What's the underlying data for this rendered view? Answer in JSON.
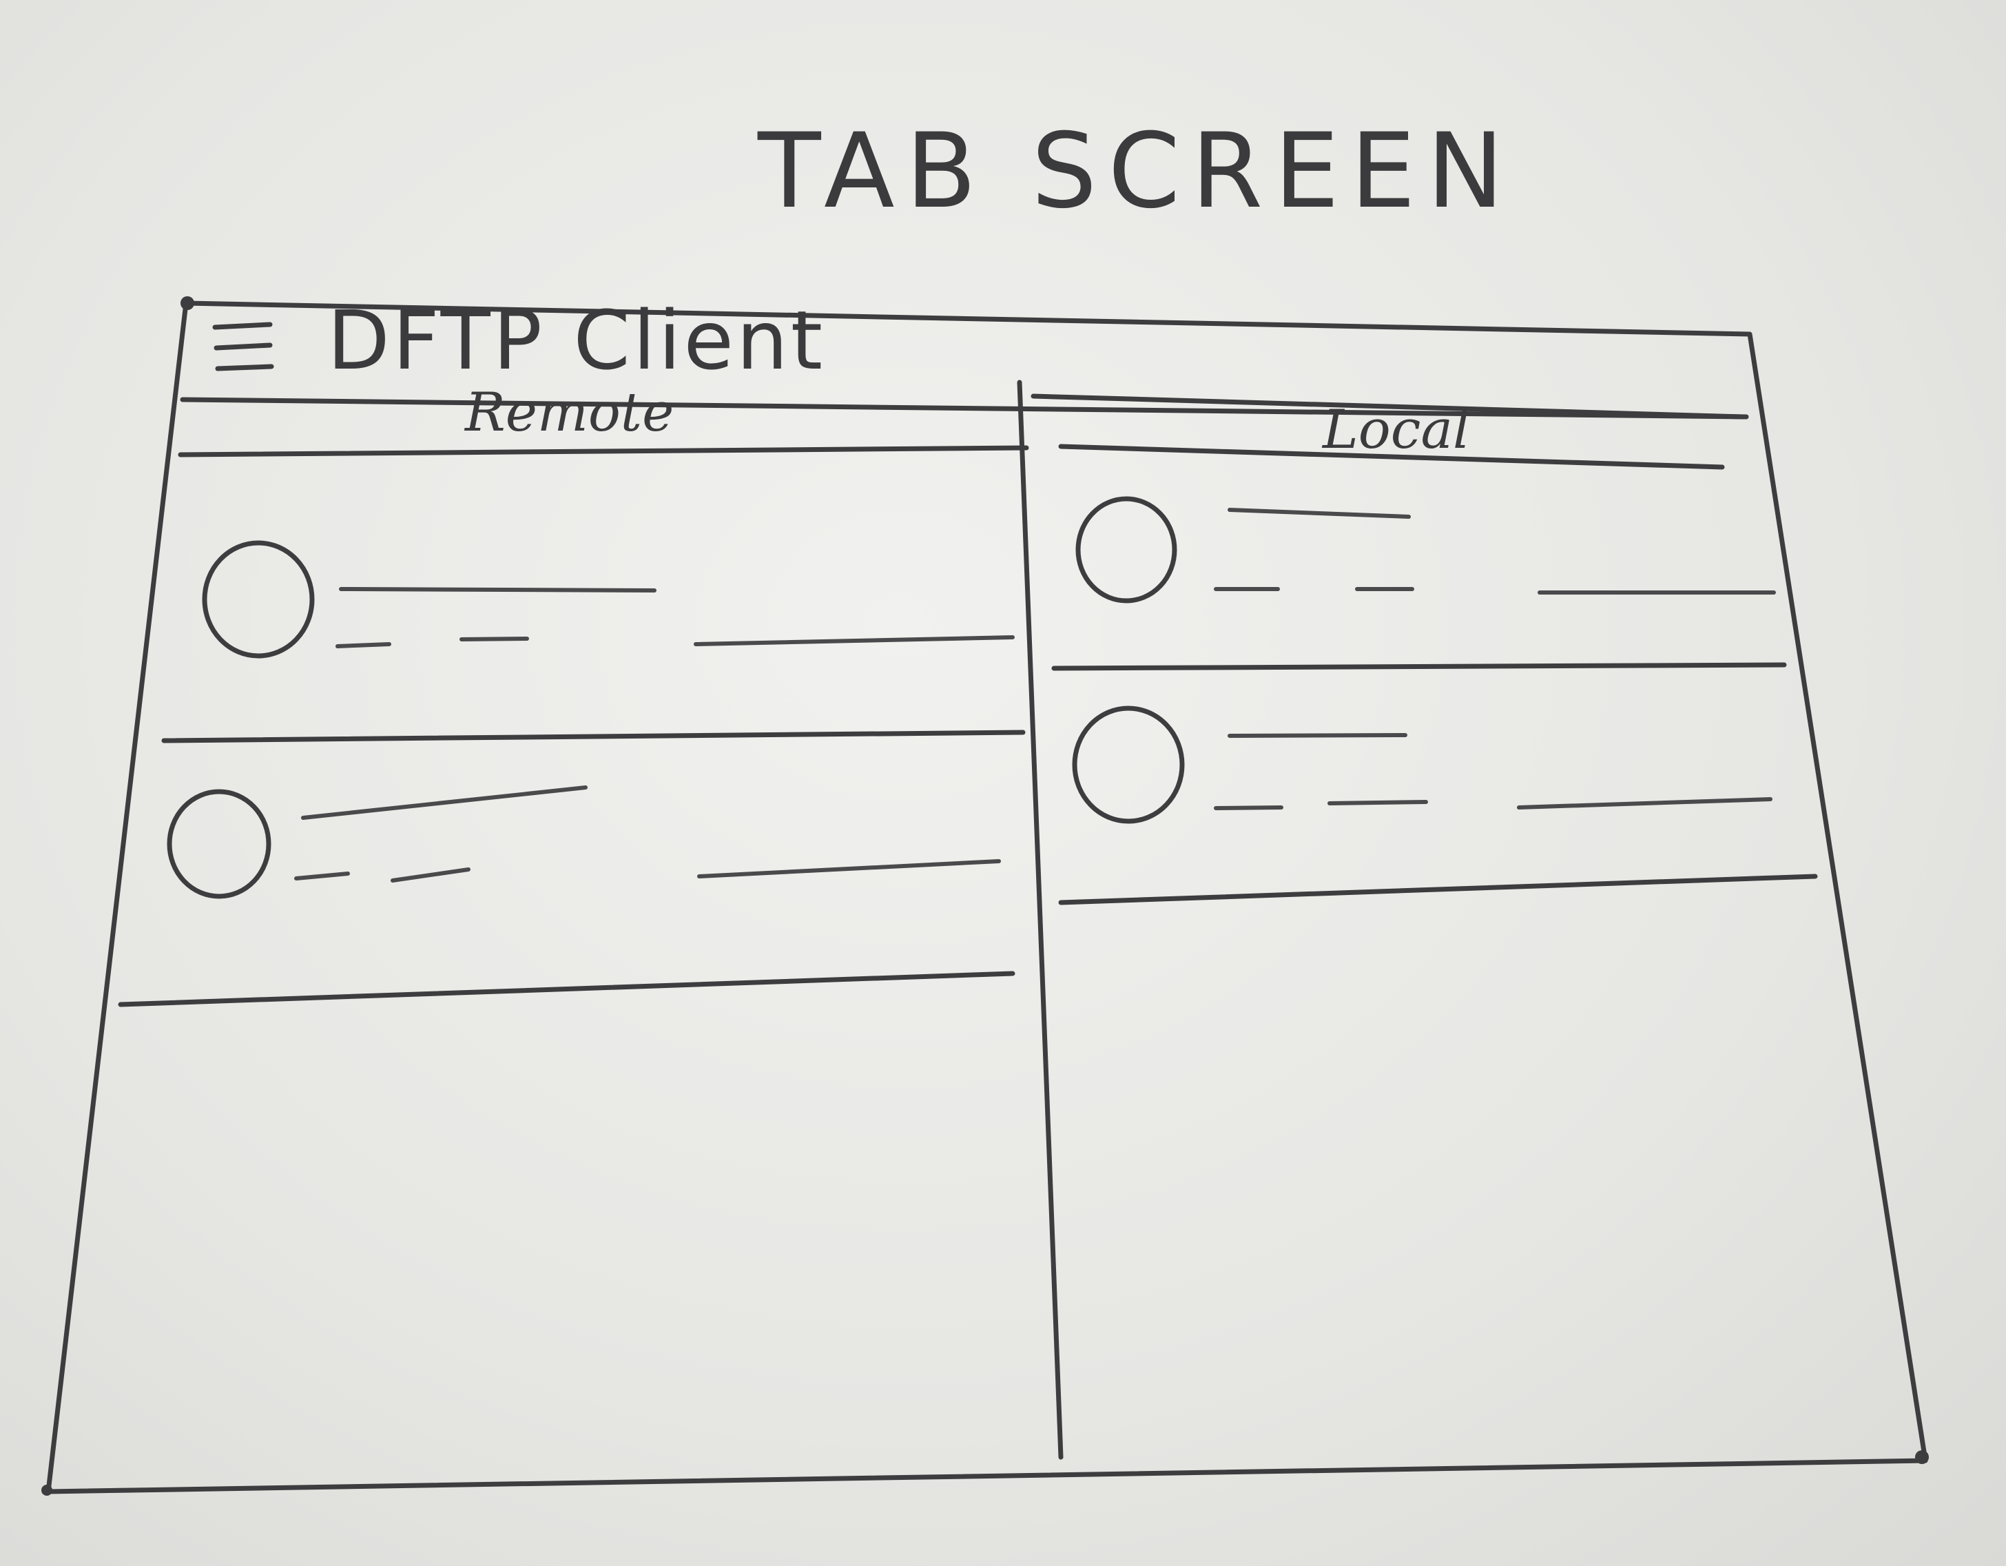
{
  "page": {
    "heading": "TAB SCREEN"
  },
  "app_bar": {
    "menu_icon": "hamburger-menu-icon",
    "title": "DFTP Client"
  },
  "columns": {
    "remote": {
      "label": "Remote",
      "items": [
        {
          "icon": "circle-placeholder-icon"
        },
        {
          "icon": "circle-placeholder-icon"
        }
      ]
    },
    "local": {
      "label": "Local",
      "items": [
        {
          "icon": "circle-placeholder-icon"
        },
        {
          "icon": "circle-placeholder-icon"
        }
      ]
    }
  },
  "colors": {
    "ink": "#3d3d3f",
    "paper": "#e9e9e7"
  }
}
